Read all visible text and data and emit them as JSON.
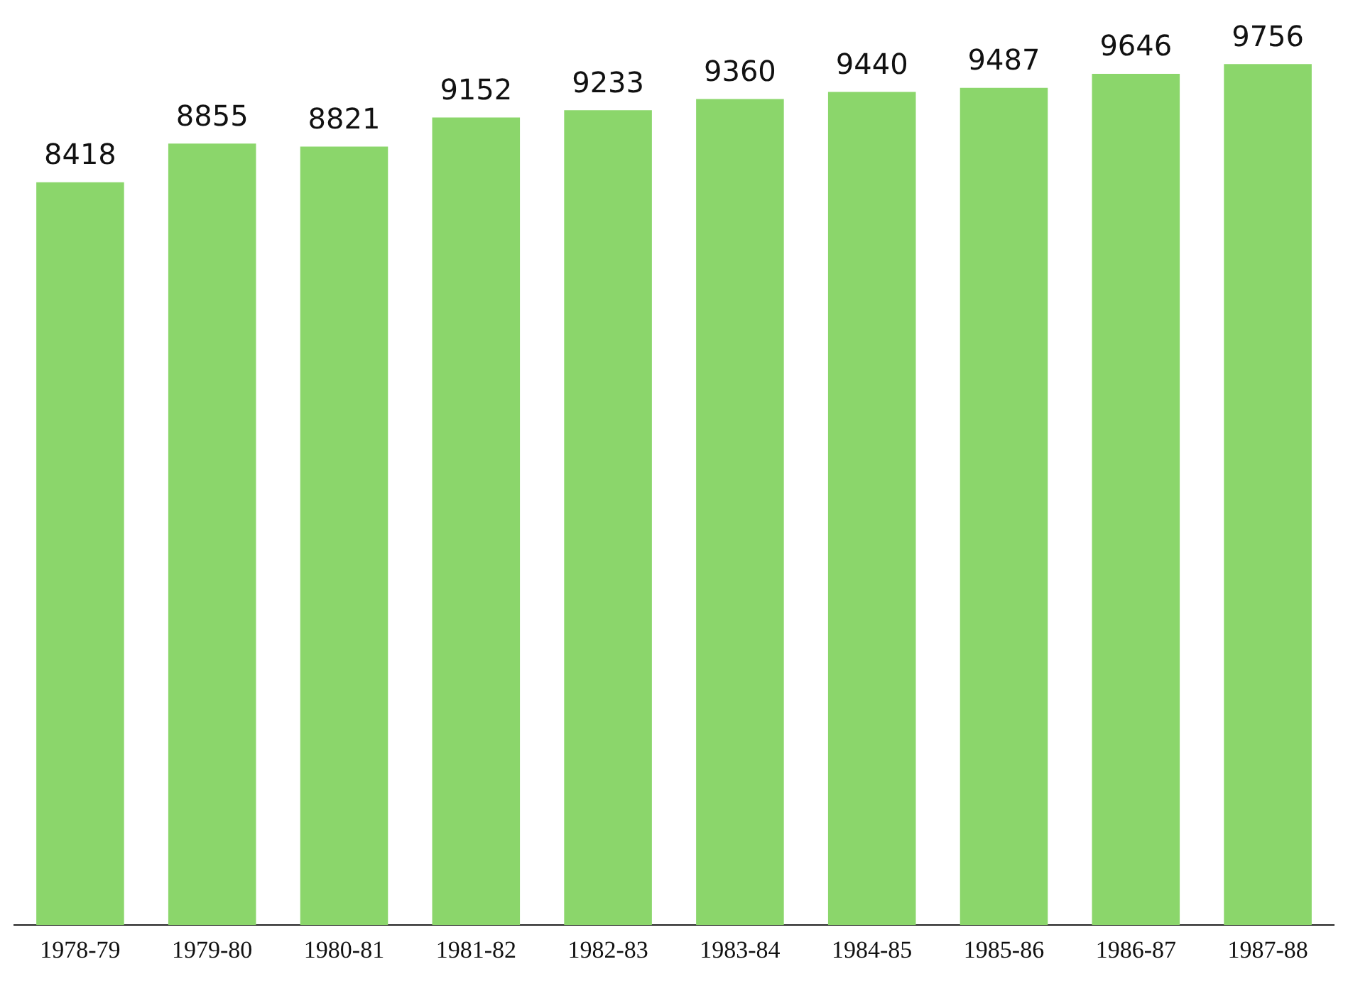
{
  "chart_data": {
    "type": "bar",
    "categories": [
      "1978-79",
      "1979-80",
      "1980-81",
      "1981-82",
      "1982-83",
      "1983-84",
      "1984-85",
      "1985-86",
      "1986-87",
      "1987-88"
    ],
    "values": [
      8418,
      8855,
      8821,
      9152,
      9233,
      9360,
      9440,
      9487,
      9646,
      9756
    ],
    "color": "#8bd66b",
    "data_labels": true,
    "grid": false,
    "legend": false,
    "tick_labels": "x"
  }
}
